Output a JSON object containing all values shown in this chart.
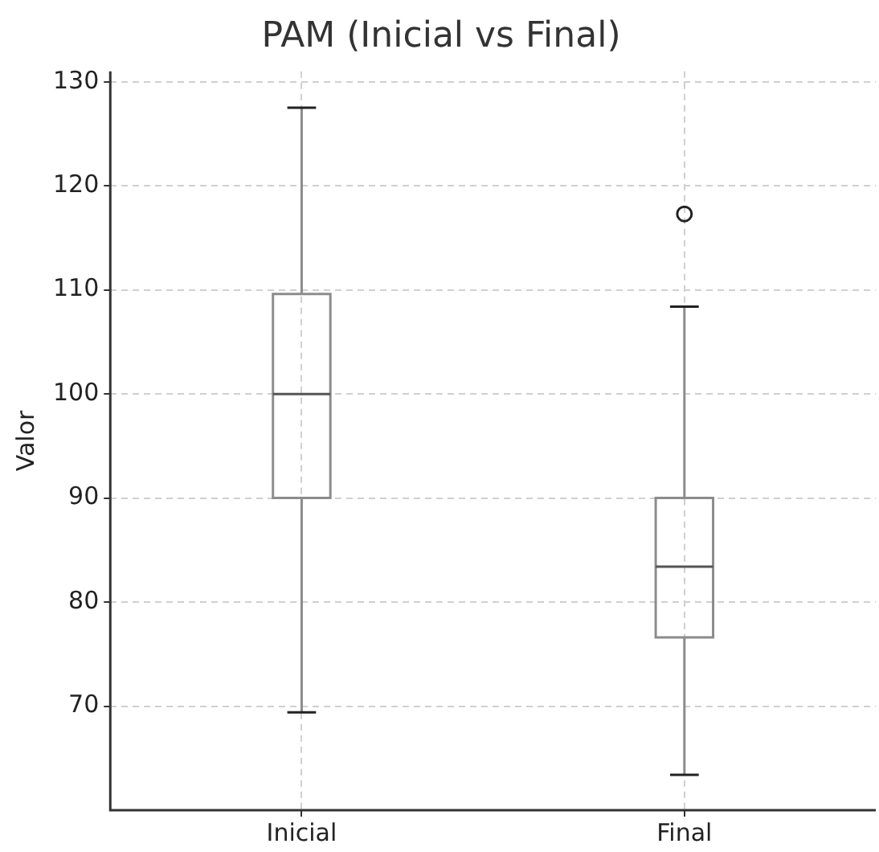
{
  "chart_data": {
    "type": "box",
    "title": "PAM (Inicial vs Final)",
    "ylabel": "Valor",
    "categories": [
      "Inicial",
      "Final"
    ],
    "boxes": [
      {
        "low": 69.4,
        "q1": 90,
        "median": 100,
        "q3": 109.6,
        "high": 127.5
      },
      {
        "low": 63.4,
        "q1": 76.6,
        "median": 83.4,
        "q3": 90,
        "high": 108.4,
        "outliers": [
          117.3
        ]
      }
    ],
    "ylim": [
      60,
      131
    ],
    "yticks": [
      70,
      80,
      90,
      100,
      110,
      120,
      130
    ],
    "grid": true,
    "legend": false
  }
}
